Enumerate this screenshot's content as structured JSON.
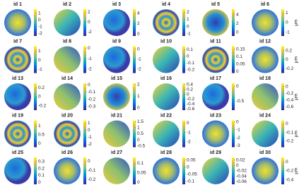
{
  "panels": [
    {
      "title": "id 1",
      "clim": [
        -2.4,
        1.6
      ],
      "ticks": [
        1,
        0,
        -1,
        -2
      ]
    },
    {
      "title": "id 2",
      "clim": [
        -2.8,
        2.6
      ],
      "ticks": [
        2,
        0,
        -2
      ]
    },
    {
      "title": "id 3",
      "clim": [
        -0.4,
        4.8
      ],
      "ticks": [
        4,
        2,
        0
      ]
    },
    {
      "title": "id 4",
      "clim": [
        -1.3,
        2.4
      ],
      "ticks": [
        2,
        1,
        0,
        -1
      ]
    },
    {
      "title": "id 5",
      "clim": [
        -0.8,
        5.2
      ],
      "ticks": [
        4,
        2,
        0
      ]
    },
    {
      "title": "id 6",
      "clim": [
        -1.4,
        1.4
      ],
      "ticks": [
        1,
        0,
        -1
      ],
      "unit": "μm"
    },
    {
      "title": "id 7",
      "clim": [
        -1.4,
        1.5
      ],
      "ticks": [
        1,
        0,
        -1
      ]
    },
    {
      "title": "id 8",
      "clim": [
        -2.4,
        0.2
      ],
      "ticks": [
        0,
        -1,
        -2
      ]
    },
    {
      "title": "id 9",
      "clim": [
        -2.4,
        0.3
      ],
      "ticks": [
        0,
        -1,
        -2
      ]
    },
    {
      "title": "id 10",
      "clim": [
        -0.25,
        0.15
      ],
      "ticks": [
        0.1,
        0,
        -0.1,
        -0.2
      ]
    },
    {
      "title": "id 11",
      "clim": [
        -0.01,
        0.17
      ],
      "ticks": [
        0.15,
        0.1,
        0.05,
        0
      ]
    },
    {
      "title": "id 12",
      "clim": [
        -0.3,
        0.3
      ],
      "ticks": [
        0.2,
        0,
        -0.2
      ],
      "unit": "μm"
    },
    {
      "title": "id 13",
      "clim": [
        -0.3,
        0.3
      ],
      "ticks": [
        0.2,
        0,
        -0.2
      ]
    },
    {
      "title": "id 14",
      "clim": [
        -0.35,
        0.02
      ],
      "ticks": [
        0,
        -0.1,
        -0.2,
        -0.3
      ]
    },
    {
      "title": "id 15",
      "clim": [
        -0.2,
        2.1
      ],
      "ticks": [
        2,
        1,
        0
      ]
    },
    {
      "title": "id 16",
      "clim": [
        -0.65,
        0.45
      ],
      "ticks": [
        0.4,
        0.2,
        0,
        -0.2,
        -0.4,
        -0.6
      ]
    },
    {
      "title": "id 17",
      "clim": [
        -0.8,
        0.1
      ],
      "ticks": [
        0,
        -0.5
      ]
    },
    {
      "title": "id 18",
      "clim": [
        -0.7,
        0.1
      ],
      "ticks": [
        0,
        -0.2,
        -0.4,
        -0.6
      ],
      "unit": "μm"
    },
    {
      "title": "id 19",
      "clim": [
        -0.2,
        1.3
      ],
      "ticks": [
        1,
        0.5,
        0
      ]
    },
    {
      "title": "id 20",
      "clim": [
        -2.4,
        1.4
      ],
      "ticks": [
        1,
        0,
        -1,
        -2
      ]
    },
    {
      "title": "id 21",
      "clim": [
        -0.6,
        1.6
      ],
      "ticks": [
        1.5,
        1,
        0.5,
        0,
        -0.5
      ]
    },
    {
      "title": "id 22",
      "clim": [
        -2.6,
        0.3
      ],
      "ticks": [
        0,
        -1,
        -2
      ]
    },
    {
      "title": "id 23",
      "clim": [
        -3.2,
        0.2
      ],
      "ticks": [
        0,
        -1,
        -2,
        -3
      ]
    },
    {
      "title": "id 24",
      "clim": [
        -0.27,
        0.04
      ],
      "ticks": [
        0,
        -0.1,
        -0.2
      ],
      "unit": "μm"
    },
    {
      "title": "id 25",
      "clim": [
        -0.03,
        0.36
      ],
      "ticks": [
        0.3,
        0.2,
        0.1,
        0
      ]
    },
    {
      "title": "id 26",
      "clim": [
        -0.25,
        0.04
      ],
      "ticks": [
        0,
        -0.1,
        -0.2
      ]
    },
    {
      "title": "id 27",
      "clim": [
        -0.01,
        0.13
      ],
      "ticks": [
        0.1,
        0.05,
        0
      ]
    },
    {
      "title": "id 28",
      "clim": [
        -0.12,
        0.07
      ],
      "ticks": [
        0.05,
        0,
        -0.05,
        -0.1
      ]
    },
    {
      "title": "id 29",
      "clim": [
        -0.07,
        0.03
      ],
      "ticks": [
        0.02,
        0,
        -0.02,
        -0.04,
        -0.06
      ]
    },
    {
      "title": "id 30",
      "clim": [
        -0.5,
        0.1
      ],
      "ticks": [
        0,
        -0.2,
        -0.4
      ],
      "unit": "μm"
    }
  ]
}
